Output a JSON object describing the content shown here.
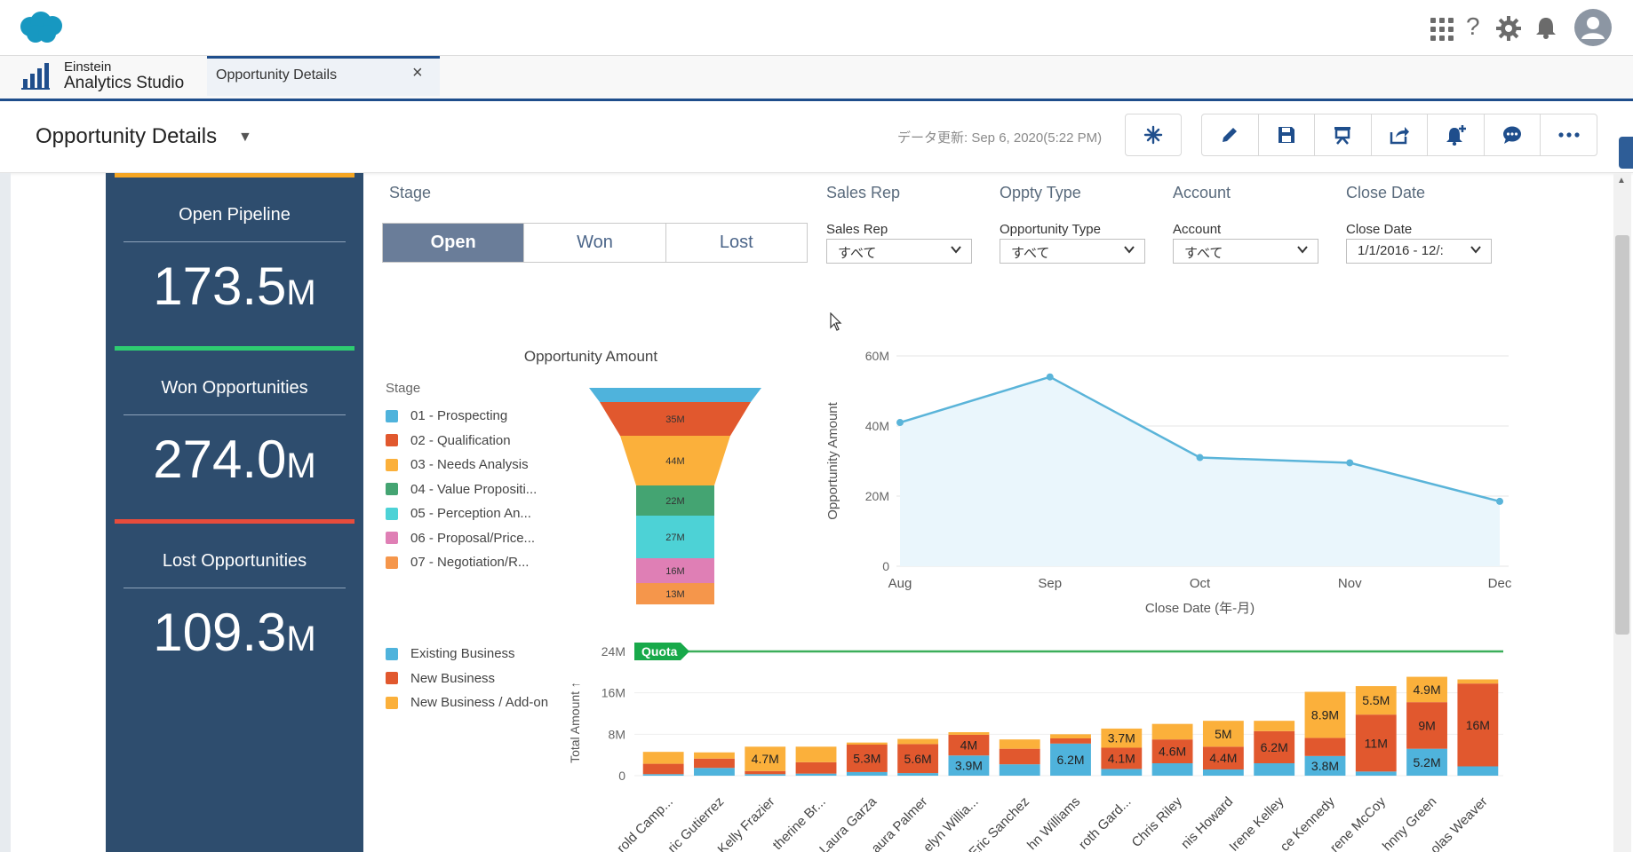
{
  "header": {
    "tab_label": "Opportunity Details",
    "app_line1": "Einstein",
    "app_line2": "Analytics Studio"
  },
  "dashboard": {
    "title": "Opportunity Details",
    "updated": "データ更新: Sep 6, 2020(5:22 PM)"
  },
  "kpis": [
    {
      "label": "Open Pipeline",
      "value": "173.5",
      "unit": "M",
      "color": "#f5a623"
    },
    {
      "label": "Won Opportunities",
      "value": "274.0",
      "unit": "M",
      "color": "#2ecc71"
    },
    {
      "label": "Lost Opportunities",
      "value": "109.3",
      "unit": "M",
      "color": "#e74c3c"
    }
  ],
  "filters": {
    "stage_label": "Stage",
    "stage_options": [
      "Open",
      "Won",
      "Lost"
    ],
    "sales_rep": {
      "title": "Sales Rep",
      "label": "Sales Rep",
      "value": "すべて"
    },
    "oppty_type": {
      "title": "Oppty Type",
      "label": "Opportunity Type",
      "value": "すべて"
    },
    "account": {
      "title": "Account",
      "label": "Account",
      "value": "すべて"
    },
    "close_date": {
      "title": "Close Date",
      "label": "Close Date",
      "value": "1/1/2016 - 12/:"
    }
  },
  "funnel": {
    "title": "Opportunity Amount",
    "legend_title": "Stage",
    "legend": [
      {
        "name": "01 - Prospecting",
        "color": "#4fb3dc"
      },
      {
        "name": "02 - Qualification",
        "color": "#e1582e"
      },
      {
        "name": "03 - Needs Analysis",
        "color": "#fbb03b"
      },
      {
        "name": "04 - Value Propositi...",
        "color": "#44a472"
      },
      {
        "name": "05 - Perception An...",
        "color": "#4dd2d6"
      },
      {
        "name": "06 - Proposal/Price...",
        "color": "#df7fb5"
      },
      {
        "name": "07 - Negotiation/R...",
        "color": "#f5964b"
      }
    ]
  },
  "line_chart": {
    "ylabel": "Opportunity Amount",
    "xlabel": "Close Date (年-月)",
    "yticks": [
      "0",
      "20M",
      "40M",
      "60M"
    ]
  },
  "bar_chart": {
    "ylabel": "Total Amount ↑",
    "yticks": [
      "0",
      "8M",
      "16M",
      "24M"
    ],
    "quota_label": "Quota",
    "legend": [
      {
        "name": "Existing Business",
        "color": "#4fb3dc"
      },
      {
        "name": "New Business",
        "color": "#e1582e"
      },
      {
        "name": "New Business / Add-on",
        "color": "#fbb03b"
      }
    ]
  },
  "chart_data": [
    {
      "type": "funnel",
      "title": "Opportunity Amount",
      "categories": [
        "01 - Prospecting",
        "02 - Qualification",
        "03 - Needs Analysis",
        "04 - Value Propositi...",
        "05 - Perception An...",
        "06 - Proposal/Price...",
        "07 - Negotiation/R..."
      ],
      "values": [
        8,
        35,
        44,
        22,
        27,
        16,
        13
      ],
      "labels": [
        "",
        "35M",
        "44M",
        "22M",
        "27M",
        "16M",
        "13M"
      ],
      "colors": [
        "#4fb3dc",
        "#e1582e",
        "#fbb03b",
        "#44a472",
        "#4dd2d6",
        "#df7fb5",
        "#f5964b"
      ]
    },
    {
      "type": "area",
      "x": [
        "Aug",
        "Sep",
        "Oct",
        "Nov",
        "Dec"
      ],
      "y": [
        41,
        54,
        31,
        29.5,
        18.5
      ],
      "ylim": [
        0,
        60
      ],
      "xlabel": "Close Date (年-月)",
      "ylabel": "Opportunity Amount",
      "color": "#5ab4d9"
    },
    {
      "type": "bar",
      "stacked": true,
      "categories": [
        "rold Camp...",
        "ric Gutierrez",
        "Kelly Frazier",
        "therine Br...",
        "Laura Garza",
        "aura Palmer",
        "elyn Willia...",
        "Eric Sanchez",
        "hn Williams",
        "roth Gard...",
        "Chris Riley",
        "nis Howard",
        "Irene Kelley",
        "ce Kennedy",
        "rene McCoy",
        "hnny Green",
        "olas Weaver"
      ],
      "series": [
        {
          "name": "Existing Business",
          "values": [
            0.3,
            1.5,
            0.3,
            0.4,
            0.7,
            0.5,
            3.9,
            2.2,
            6.2,
            1.3,
            2.4,
            1.2,
            2.4,
            3.8,
            0.8,
            5.2,
            1.8
          ]
        },
        {
          "name": "New Business",
          "values": [
            2.0,
            1.8,
            0.6,
            2.2,
            5.3,
            5.6,
            4.0,
            3.0,
            1.0,
            4.1,
            4.6,
            4.4,
            6.2,
            3.5,
            11.0,
            9.0,
            16.0
          ]
        },
        {
          "name": "New Business / Add-on",
          "values": [
            2.3,
            1.2,
            4.7,
            3.0,
            0.4,
            1.0,
            0.5,
            1.8,
            0.8,
            3.7,
            3.0,
            5.0,
            2.0,
            8.9,
            5.5,
            4.9,
            0.8
          ]
        }
      ],
      "bar_labels": [
        [
          null,
          null,
          null,
          null,
          null,
          null,
          "3.9M",
          null,
          "6.2M",
          null,
          null,
          null,
          null,
          "3.8M",
          null,
          "5.2M",
          null
        ],
        [
          null,
          null,
          null,
          null,
          "5.3M",
          "5.6M",
          "4M",
          null,
          null,
          "4.1M",
          "4.6M",
          "4.4M",
          "6.2M",
          null,
          "11M",
          "9M",
          "16M"
        ],
        [
          null,
          null,
          "4.7M",
          null,
          null,
          null,
          null,
          null,
          null,
          "3.7M",
          null,
          "5M",
          null,
          "8.9M",
          "5.5M",
          "4.9M",
          null
        ]
      ],
      "quota": 24,
      "ylim": [
        0,
        24
      ],
      "ylabel": "Total Amount ↑",
      "colors": [
        "#4fb3dc",
        "#e1582e",
        "#fbb03b"
      ]
    }
  ]
}
